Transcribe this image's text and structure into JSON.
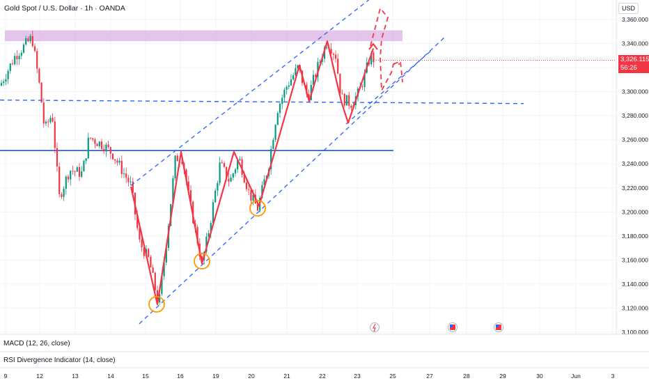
{
  "header": {
    "title": "Gold Spot / U.S. Dollar · 1h · OANDA",
    "currency": "USD"
  },
  "price_tag": {
    "price": "3,326.115",
    "countdown": "56:26",
    "color": "#f23645"
  },
  "indicators": {
    "macd": "MACD (12, 26, close)",
    "rsi": "RSI Divergence Indicator (14, close)"
  },
  "colors": {
    "up_candle": "#089981",
    "down_candle": "#f23645",
    "trendline": "#2962ff",
    "zone": "#ce93d8",
    "circle": "#ff9800",
    "path": "#f23645",
    "support": "#1e53e5"
  },
  "chart_data": {
    "type": "candlestick",
    "ylim": [
      3100,
      3372
    ],
    "yticks": [
      "3,100.000",
      "3,120.000",
      "3,140.000",
      "3,160.000",
      "3,180.000",
      "3,200.000",
      "3,220.000",
      "3,240.000",
      "3,260.000",
      "3,280.000",
      "3,300.000",
      "3,320.000",
      "3,340.000",
      "3,360.000"
    ],
    "xticks": [
      "9",
      "12",
      "13",
      "14",
      "15",
      "16",
      "19",
      "20",
      "21",
      "22",
      "23",
      "25",
      "27",
      "28",
      "29",
      "30",
      "Jun",
      "3"
    ],
    "last_price": 3326.115,
    "resistance_zone": [
      3342,
      3351
    ],
    "support_level": 3251,
    "dashed_level": 3293,
    "path_points": [
      [
        3221
      ],
      [
        3123
      ],
      [
        3250
      ],
      [
        3157
      ],
      [
        3250
      ],
      [
        3205
      ],
      [
        3322
      ],
      [
        3292
      ],
      [
        3342
      ],
      [
        3292
      ],
      [
        3274
      ],
      [
        3336
      ]
    ],
    "circled_lows": [
      3123,
      3157,
      3203
    ]
  },
  "icons": [
    "flash-icon",
    "us-flag-icon",
    "us-flag-icon"
  ]
}
